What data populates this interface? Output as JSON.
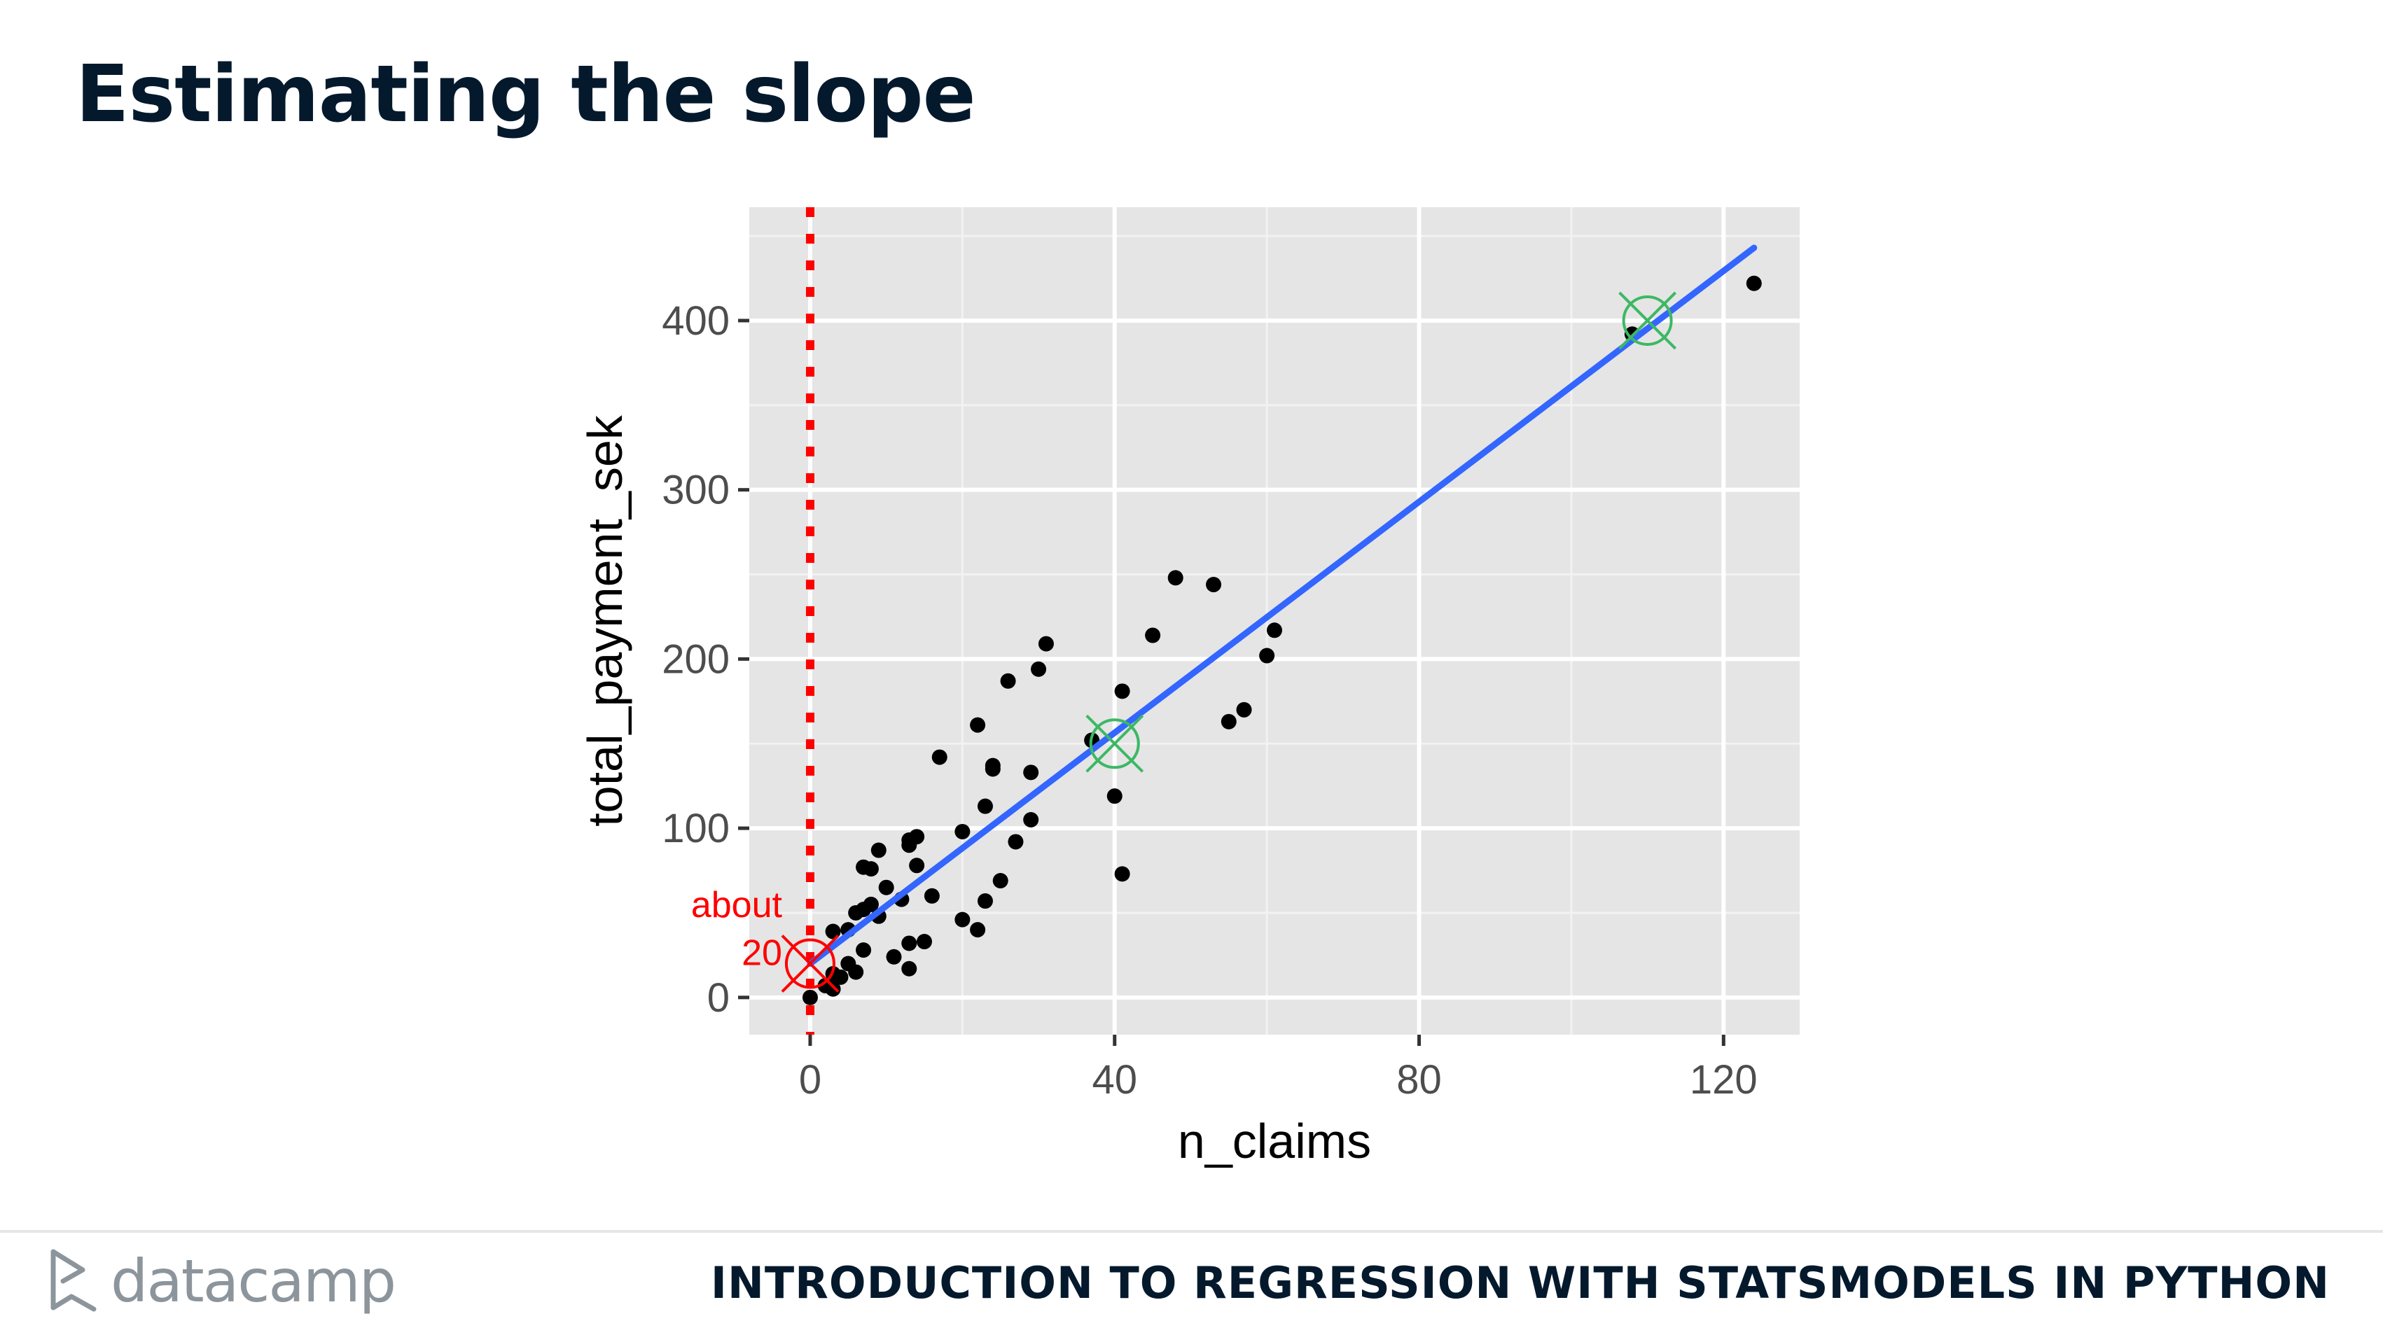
{
  "slide": {
    "title": "Estimating the slope",
    "brand": "datacamp",
    "course": "INTRODUCTION TO REGRESSION WITH STATSMODELS IN PYTHON"
  },
  "chart_data": {
    "type": "scatter",
    "xlabel": "n_claims",
    "ylabel": "total_payment_sek",
    "xlim": [
      -8,
      130
    ],
    "ylim": [
      -22,
      467
    ],
    "x_ticks": [
      0,
      40,
      80,
      120
    ],
    "y_ticks": [
      0,
      100,
      200,
      300,
      400
    ],
    "grid": true,
    "points": [
      [
        0,
        0
      ],
      [
        2,
        7
      ],
      [
        3,
        5
      ],
      [
        3,
        14
      ],
      [
        4,
        12
      ],
      [
        5,
        20
      ],
      [
        6,
        15
      ],
      [
        7,
        28
      ],
      [
        3,
        39
      ],
      [
        5,
        40
      ],
      [
        6,
        50
      ],
      [
        7,
        52
      ],
      [
        8,
        55
      ],
      [
        9,
        48
      ],
      [
        10,
        65
      ],
      [
        11,
        24
      ],
      [
        12,
        58
      ],
      [
        13,
        32
      ],
      [
        13,
        17
      ],
      [
        14,
        78
      ],
      [
        15,
        33
      ],
      [
        16,
        60
      ],
      [
        20,
        46
      ],
      [
        22,
        40
      ],
      [
        23,
        57
      ],
      [
        24,
        137
      ],
      [
        25,
        69
      ],
      [
        27,
        92
      ],
      [
        29,
        105
      ],
      [
        7,
        77
      ],
      [
        8,
        76
      ],
      [
        9,
        87
      ],
      [
        13,
        90
      ],
      [
        13,
        93
      ],
      [
        14,
        95
      ],
      [
        17,
        142
      ],
      [
        20,
        98
      ],
      [
        22,
        161
      ],
      [
        23,
        113
      ],
      [
        24,
        135
      ],
      [
        26,
        187
      ],
      [
        29,
        133
      ],
      [
        30,
        194
      ],
      [
        31,
        209
      ],
      [
        37,
        152
      ],
      [
        40,
        119
      ],
      [
        41,
        181
      ],
      [
        41,
        73
      ],
      [
        45,
        214
      ],
      [
        48,
        248
      ],
      [
        53,
        244
      ],
      [
        55,
        163
      ],
      [
        57,
        170
      ],
      [
        60,
        202
      ],
      [
        61,
        217
      ],
      [
        108,
        392
      ],
      [
        124,
        422
      ]
    ],
    "regression_line": {
      "x": [
        0,
        124
      ],
      "y": [
        20,
        443
      ],
      "color": "#3366ff"
    },
    "intercept_guide": {
      "x": 0,
      "color": "#ff0000"
    },
    "annotations": [
      {
        "text": "about",
        "color": "#ff0000"
      },
      {
        "text": "20",
        "color": "#ff0000"
      }
    ],
    "highlight_points": [
      {
        "x": 0,
        "y": 20,
        "color": "#ff0000"
      },
      {
        "x": 40,
        "y": 150,
        "color": "#3cb864"
      },
      {
        "x": 110,
        "y": 400,
        "color": "#3cb864"
      }
    ],
    "colors": {
      "panel": "#e5e5e5",
      "grid_major": "#ffffff",
      "grid_minor": "#f2f2f2",
      "point": "#000000",
      "tick_text": "#4d4d4d",
      "title_text": "#000000"
    }
  }
}
